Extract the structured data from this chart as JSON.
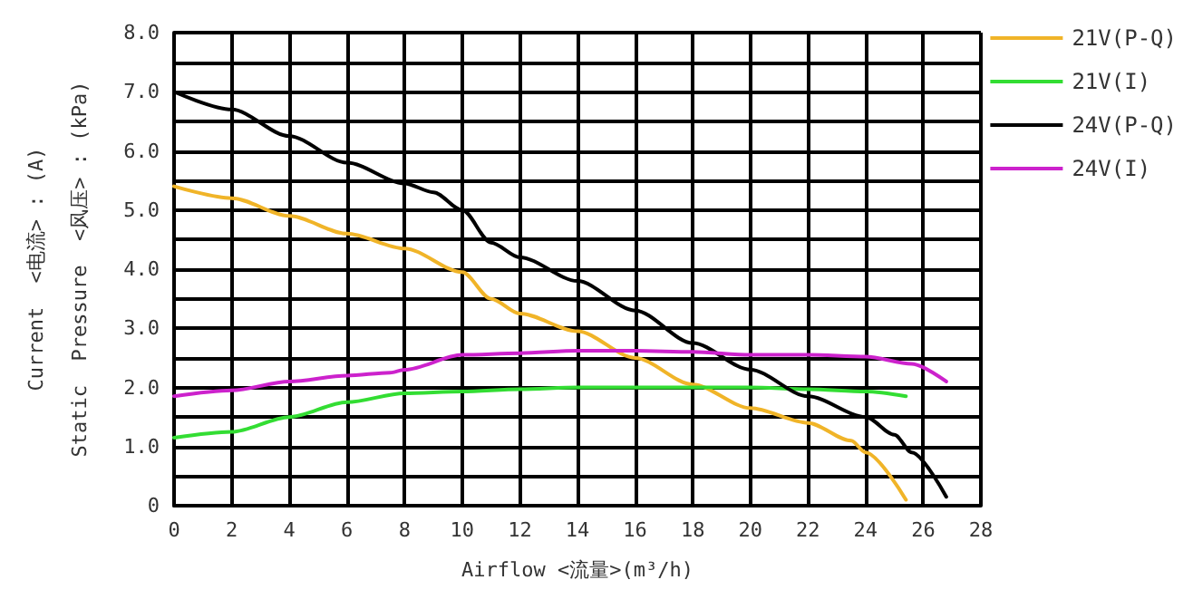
{
  "chart_data": {
    "type": "line",
    "xlabel": "Airflow <流量>(m³/h)",
    "ylabel": "Current  <电流> : (A)\nStatic  Pressure  <风压> : (kPa)",
    "xlim": [
      0,
      28
    ],
    "xticks": [
      0,
      2,
      4,
      6,
      8,
      10,
      12,
      14,
      16,
      18,
      20,
      22,
      24,
      26,
      28
    ],
    "ylim": [
      0,
      8
    ],
    "yticks": [
      {
        "value": 0,
        "label": "0"
      },
      {
        "value": 0.5,
        "label": null
      },
      {
        "value": 1,
        "label": "1.0"
      },
      {
        "value": 1.5,
        "label": null
      },
      {
        "value": 2,
        "label": "2.0"
      },
      {
        "value": 2.5,
        "label": null
      },
      {
        "value": 3,
        "label": "3.0"
      },
      {
        "value": 3.5,
        "label": null
      },
      {
        "value": 4,
        "label": "4.0"
      },
      {
        "value": 4.5,
        "label": null
      },
      {
        "value": 5,
        "label": "5.0"
      },
      {
        "value": 5.5,
        "label": null
      },
      {
        "value": 6,
        "label": "6.0"
      },
      {
        "value": 6.5,
        "label": null
      },
      {
        "value": 7,
        "label": "7.0"
      },
      {
        "value": 7.5,
        "label": null
      },
      {
        "value": 8,
        "label": "8.0"
      }
    ],
    "grid": true,
    "legend": "top right",
    "marker": "none",
    "line_style": "solid",
    "series": [
      {
        "name": "21V(P-Q)",
        "color": "#f0b428",
        "x": [
          0,
          2,
          4,
          6,
          8,
          10,
          11,
          12,
          14,
          16,
          18,
          20,
          22,
          23.5,
          24,
          25.4
        ],
        "values": [
          5.4,
          5.2,
          4.9,
          4.6,
          4.35,
          3.95,
          3.5,
          3.25,
          2.95,
          2.5,
          2.05,
          1.65,
          1.4,
          1.1,
          0.9,
          0.1
        ]
      },
      {
        "name": "21V(I)",
        "color": "#33dd33",
        "x": [
          0,
          2,
          4,
          6,
          8,
          10,
          12,
          14,
          16,
          18,
          20,
          22,
          24,
          25.4
        ],
        "values": [
          1.15,
          1.25,
          1.5,
          1.75,
          1.9,
          1.93,
          1.97,
          2.0,
          2.0,
          2.0,
          2.0,
          1.97,
          1.93,
          1.85
        ]
      },
      {
        "name": "24V(P-Q)",
        "color": "#000000",
        "x": [
          0,
          2,
          4,
          6,
          8,
          9,
          10,
          11,
          12,
          14,
          16,
          18,
          20,
          22,
          24,
          25,
          25.6,
          26.8
        ],
        "values": [
          7.0,
          6.7,
          6.25,
          5.8,
          5.45,
          5.3,
          5.0,
          4.45,
          4.2,
          3.8,
          3.3,
          2.75,
          2.3,
          1.85,
          1.5,
          1.2,
          0.9,
          0.15
        ]
      },
      {
        "name": "24V(I)",
        "color": "#cc22cc",
        "x": [
          0,
          2,
          4,
          6,
          7.5,
          8,
          10,
          12,
          14,
          16,
          18,
          20,
          22,
          24,
          25.6,
          26.8
        ],
        "values": [
          1.85,
          1.95,
          2.1,
          2.2,
          2.25,
          2.3,
          2.55,
          2.58,
          2.62,
          2.62,
          2.6,
          2.55,
          2.55,
          2.52,
          2.4,
          2.1
        ]
      }
    ]
  }
}
